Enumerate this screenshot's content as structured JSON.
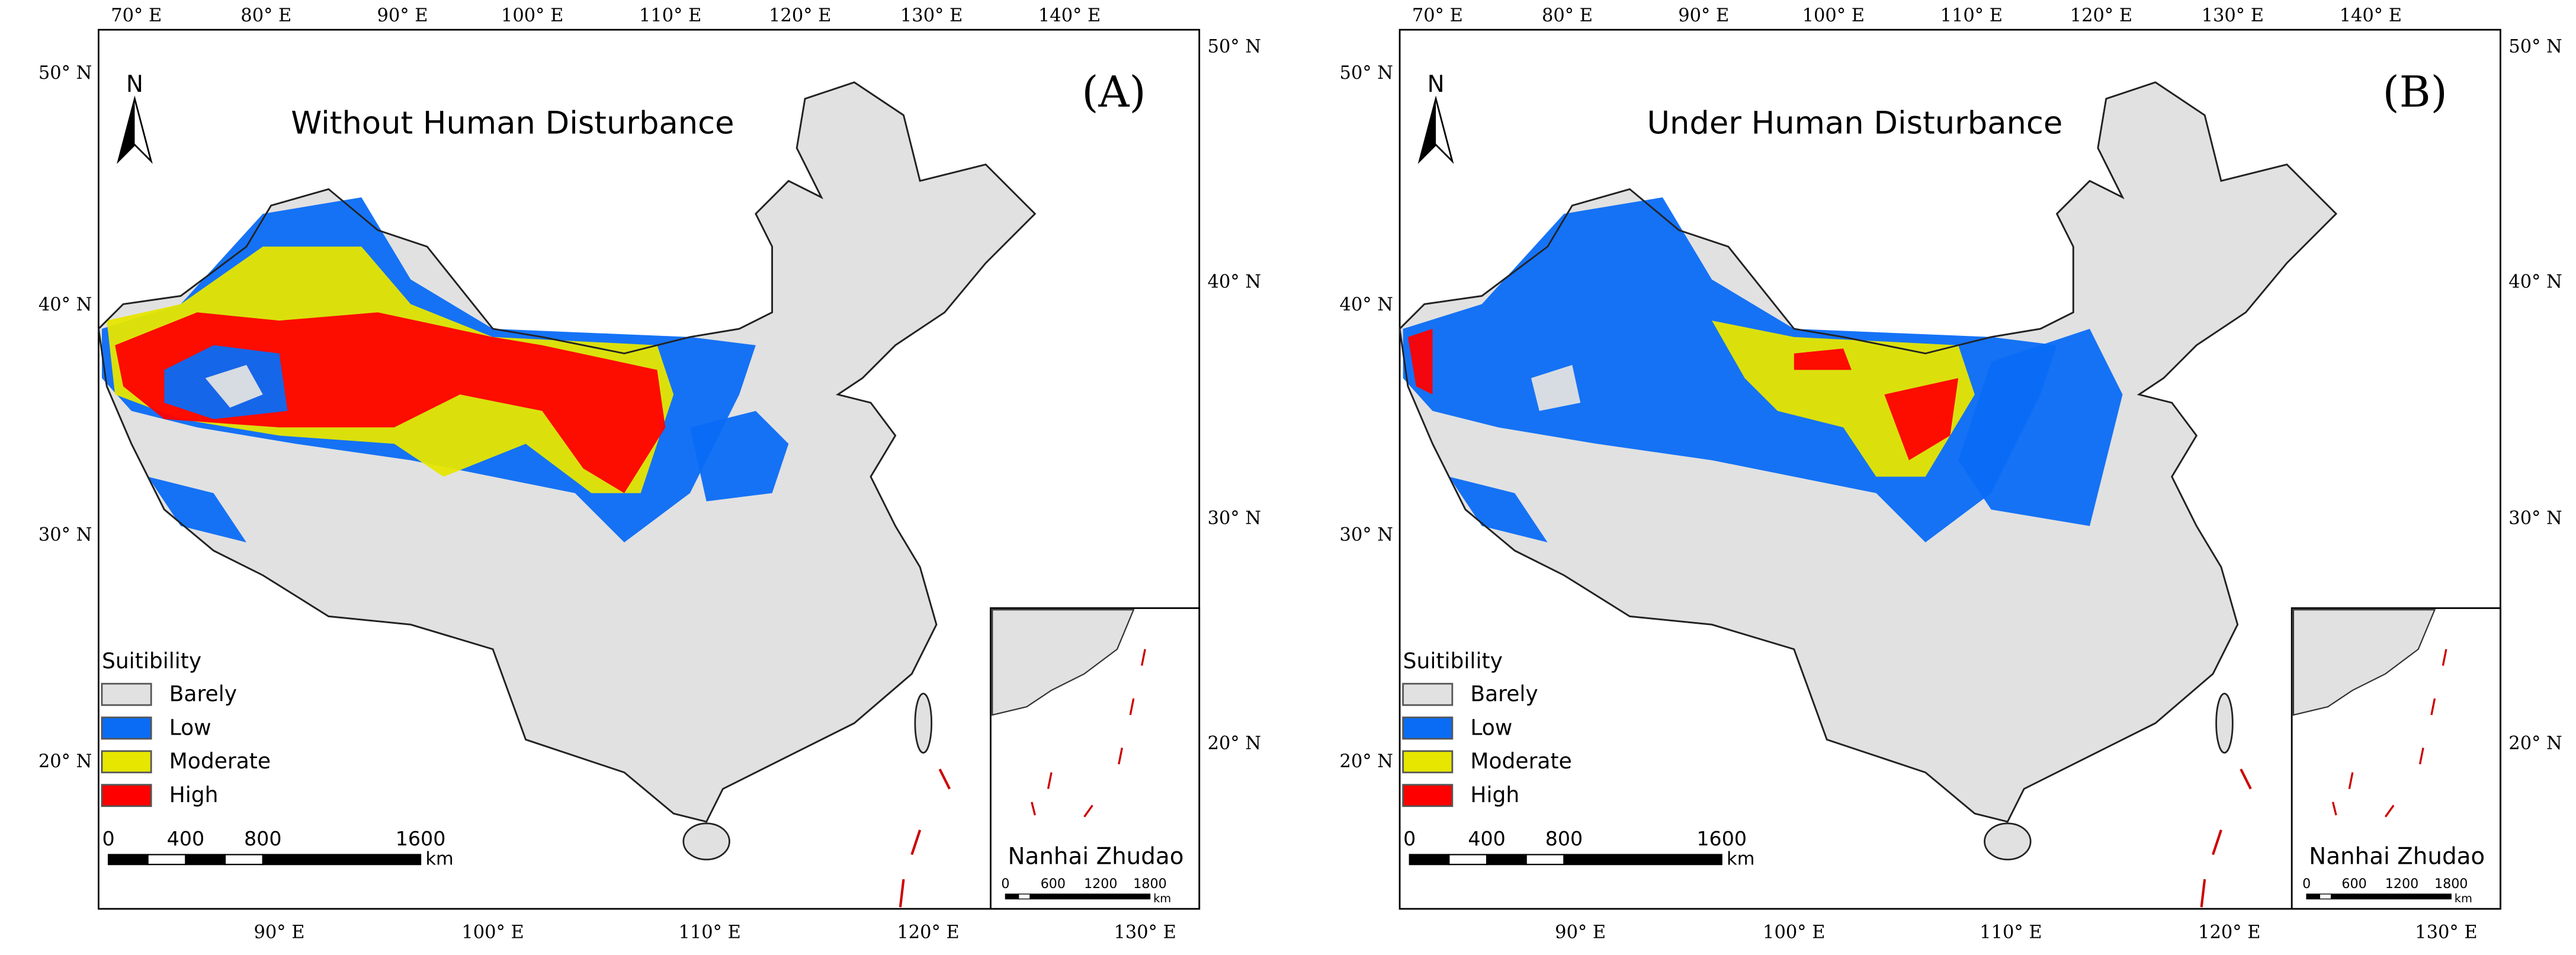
{
  "panels": [
    {
      "label": "(A)",
      "title": "Without Human Disturbance",
      "north": "N",
      "legend": {
        "title": "Suitibility",
        "items": [
          {
            "label": "Barely",
            "color": "#e1e1e1"
          },
          {
            "label": "Low",
            "color": "#0a6cf5"
          },
          {
            "label": "Moderate",
            "color": "#e6e600"
          },
          {
            "label": "High",
            "color": "#ff0000"
          }
        ]
      },
      "scale_bar": {
        "labels": [
          "0",
          "400",
          "800",
          "1600"
        ],
        "unit": "km"
      },
      "inset": {
        "label": "Nanhai Zhudao",
        "scale_labels": [
          "0",
          "600",
          "1200",
          "1800"
        ],
        "unit": "km"
      },
      "top_ticks": [
        "70° E",
        "80° E",
        "90° E",
        "100° E",
        "110° E",
        "120° E",
        "130° E",
        "140° E"
      ],
      "bottom_ticks": [
        "90° E",
        "100° E",
        "110° E",
        "120° E",
        "130° E"
      ],
      "left_ticks": [
        "50° N",
        "40° N",
        "30° N",
        "20° N"
      ],
      "right_ticks": [
        "50° N",
        "40° N",
        "30° N",
        "20° N"
      ]
    },
    {
      "label": "(B)",
      "title": "Under Human Disturbance",
      "north": "N",
      "legend": {
        "title": "Suitibility",
        "items": [
          {
            "label": "Barely",
            "color": "#e1e1e1"
          },
          {
            "label": "Low",
            "color": "#0a6cf5"
          },
          {
            "label": "Moderate",
            "color": "#e6e600"
          },
          {
            "label": "High",
            "color": "#ff0000"
          }
        ]
      },
      "scale_bar": {
        "labels": [
          "0",
          "400",
          "800",
          "1600"
        ],
        "unit": "km"
      },
      "inset": {
        "label": "Nanhai Zhudao",
        "scale_labels": [
          "0",
          "600",
          "1200",
          "1800"
        ],
        "unit": "km"
      },
      "top_ticks": [
        "70° E",
        "80° E",
        "90° E",
        "100° E",
        "110° E",
        "120° E",
        "130° E",
        "140° E"
      ],
      "bottom_ticks": [
        "90° E",
        "100° E",
        "110° E",
        "120° E",
        "130° E"
      ],
      "left_ticks": [
        "50° N",
        "40° N",
        "30° N",
        "20° N"
      ],
      "right_ticks": [
        "50° N",
        "40° N",
        "30° N",
        "20° N"
      ]
    }
  ]
}
